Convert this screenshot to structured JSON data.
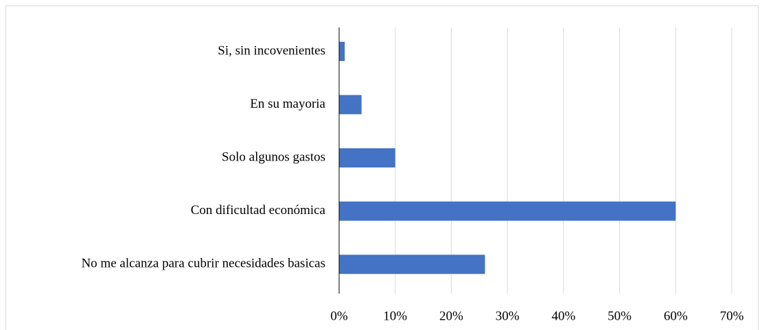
{
  "chart_data": {
    "type": "barh",
    "categories": [
      "Si, sin incovenientes",
      "En su mayoria",
      "Solo algunos gastos",
      "Con dificultad económica",
      "No me alcanza para cubrir necesidades basicas"
    ],
    "values": [
      1,
      4,
      10,
      60,
      26
    ],
    "color": "#4472c4",
    "xlim": [
      0,
      70
    ],
    "xticks": [
      {
        "value": 0,
        "label": "0%"
      },
      {
        "value": 10,
        "label": "10%"
      },
      {
        "value": 20,
        "label": "20%"
      },
      {
        "value": 30,
        "label": "30%"
      },
      {
        "value": 40,
        "label": "40%"
      },
      {
        "value": 50,
        "label": "50%"
      },
      {
        "value": 60,
        "label": "60%"
      },
      {
        "value": 70,
        "label": "70%"
      }
    ],
    "grid": true
  }
}
